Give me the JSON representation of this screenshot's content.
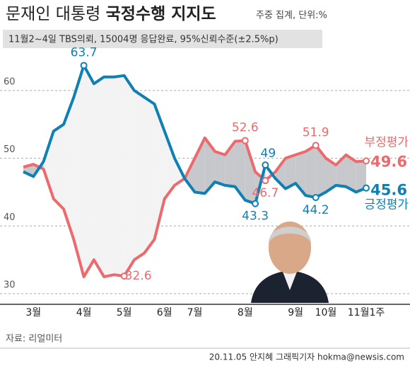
{
  "chart_data": {
    "type": "line",
    "title_light": "문재인 대통령",
    "title_bold": "국정수행 지지도",
    "unit_note": "주중 집계, 단위:%",
    "subtitle": "11월2~4일 TBS의뢰, 15004명 응답완료, 95%신뢰수준(±2.5%p)",
    "source": "자료: 리얼미터",
    "credit": "20.11.05 안지혜 그래픽기자 hokma@newsis.com",
    "categories": [
      null,
      "3월",
      null,
      null,
      null,
      null,
      "4월",
      null,
      null,
      null,
      "5월",
      null,
      null,
      null,
      "6월",
      null,
      null,
      "7월",
      null,
      null,
      null,
      null,
      "8월",
      null,
      null,
      null,
      null,
      "9월",
      null,
      null,
      "10월",
      null,
      null,
      null,
      "11월1주"
    ],
    "series": [
      {
        "name": "부정평가",
        "color": "#ec6a6d",
        "values": [
          48.7,
          49.1,
          48.4,
          44.0,
          42.5,
          38.0,
          32.5,
          35.0,
          32.5,
          32.8,
          32.6,
          35.0,
          36.0,
          38.0,
          44.0,
          46.0,
          47.0,
          50.0,
          53.0,
          51.0,
          50.5,
          52.5,
          52.6,
          48.0,
          46.7,
          48.0,
          50.0,
          50.5,
          51.0,
          51.9,
          50.0,
          49.0,
          50.5,
          49.5,
          49.6
        ]
      },
      {
        "name": "긍정평가",
        "color": "#1080b4",
        "values": [
          48.0,
          47.3,
          49.5,
          54.0,
          55.0,
          59.0,
          63.7,
          61.0,
          62.0,
          62.0,
          62.2,
          60.0,
          59.0,
          58.0,
          54.0,
          50.0,
          47.0,
          45.0,
          44.8,
          46.5,
          46.0,
          45.8,
          43.8,
          43.3,
          49.0,
          47.0,
          45.5,
          46.3,
          44.5,
          44.2,
          45.0,
          46.0,
          45.8,
          45.0,
          45.6
        ]
      }
    ],
    "ylim": [
      30,
      65
    ],
    "yticks": [
      30,
      40,
      50,
      60
    ],
    "grid": true
  }
}
